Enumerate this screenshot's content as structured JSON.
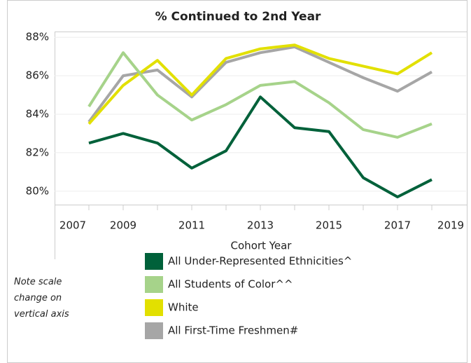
{
  "chart_data": {
    "type": "line",
    "title": "% Continued to 2nd Year",
    "x_label": "Cohort Year",
    "note": "Note scale change on vertical axis",
    "x": [
      2008,
      2009,
      2010,
      2011,
      2012,
      2013,
      2014,
      2015,
      2016,
      2017,
      2018
    ],
    "xlim": [
      2007,
      2019
    ],
    "xticks": [
      2007,
      2009,
      2011,
      2013,
      2015,
      2017,
      2019
    ],
    "ylim": [
      79.3,
      88.3
    ],
    "yticks": [
      {
        "value": 80,
        "label": "80%"
      },
      {
        "value": 82,
        "label": "82%"
      },
      {
        "value": 84,
        "label": "84%"
      },
      {
        "value": 86,
        "label": "86%"
      },
      {
        "value": 88,
        "label": "88%"
      }
    ],
    "grid": true,
    "series": [
      {
        "name": "All Under-Represented Ethnicities^",
        "color": "#00613a",
        "values": [
          82.5,
          83.0,
          82.5,
          81.2,
          82.1,
          84.9,
          83.3,
          83.1,
          80.7,
          79.7,
          80.6
        ]
      },
      {
        "name": "All Students of Color^^",
        "color": "#a6d38a",
        "values": [
          84.4,
          87.2,
          85.0,
          83.7,
          84.5,
          85.5,
          85.7,
          84.6,
          83.2,
          82.8,
          83.5
        ]
      },
      {
        "name": "White",
        "color": "#e2e000",
        "values": [
          83.5,
          85.5,
          86.8,
          85.0,
          86.9,
          87.4,
          87.6,
          86.9,
          86.5,
          86.1,
          87.2
        ]
      },
      {
        "name": "All First-Time Freshmen#",
        "color": "#a6a6a6",
        "values": [
          83.6,
          86.0,
          86.3,
          84.9,
          86.7,
          87.2,
          87.5,
          86.7,
          85.9,
          85.2,
          86.2
        ]
      }
    ]
  }
}
